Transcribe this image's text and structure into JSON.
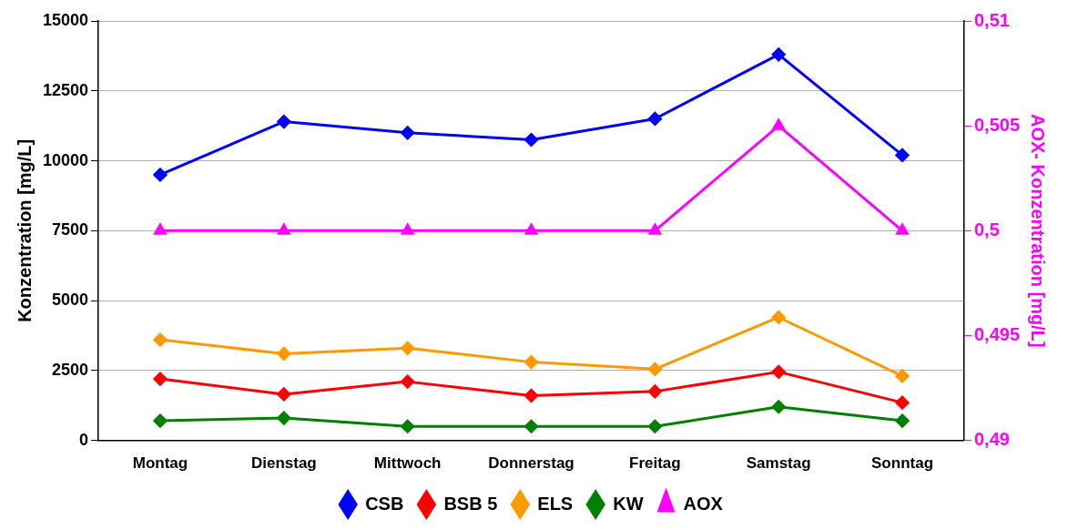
{
  "chart_data": {
    "type": "line",
    "ylabel": "Konzentration [mg/L]",
    "y2label": "AOX- Konzentration [mg/L]",
    "categories": [
      "Montag",
      "Dienstag",
      "Mittwoch",
      "Donnerstag",
      "Freitag",
      "Samstag",
      "Sonntag"
    ],
    "series": [
      {
        "name": "CSB",
        "color": "#0000ff",
        "marker": "diamond",
        "values": [
          9500,
          11400,
          11000,
          10750,
          11500,
          13800,
          10200
        ]
      },
      {
        "name": "BSB 5",
        "color": "#ff0000",
        "marker": "diamond",
        "values": [
          2200,
          1650,
          2100,
          1600,
          1750,
          2450,
          1350
        ]
      },
      {
        "name": "ELS",
        "color": "#ff9900",
        "marker": "diamond",
        "values": [
          3600,
          3100,
          3300,
          2800,
          2550,
          4400,
          2300
        ]
      },
      {
        "name": "KW",
        "color": "#008000",
        "marker": "diamond",
        "values": [
          700,
          800,
          500,
          500,
          500,
          1200,
          700
        ]
      },
      {
        "name": "AOX",
        "color": "#ff00ff",
        "marker": "triangle",
        "axis": "y2",
        "values": [
          0.5,
          0.5,
          0.5,
          0.5,
          0.5,
          0.505,
          0.5
        ]
      }
    ],
    "ylim": [
      0,
      15000
    ],
    "yticks": [
      0,
      2500,
      5000,
      7500,
      10000,
      12500,
      15000
    ],
    "y2lim": [
      0.49,
      0.51
    ],
    "y2ticks": [
      {
        "value": 0.49,
        "label": "0,49"
      },
      {
        "value": 0.495,
        "label": "0,495"
      },
      {
        "value": 0.5,
        "label": "0,5"
      },
      {
        "value": 0.505,
        "label": "0,505"
      },
      {
        "value": 0.51,
        "label": "0,51"
      }
    ],
    "grid": "y",
    "legend": "bottom"
  }
}
